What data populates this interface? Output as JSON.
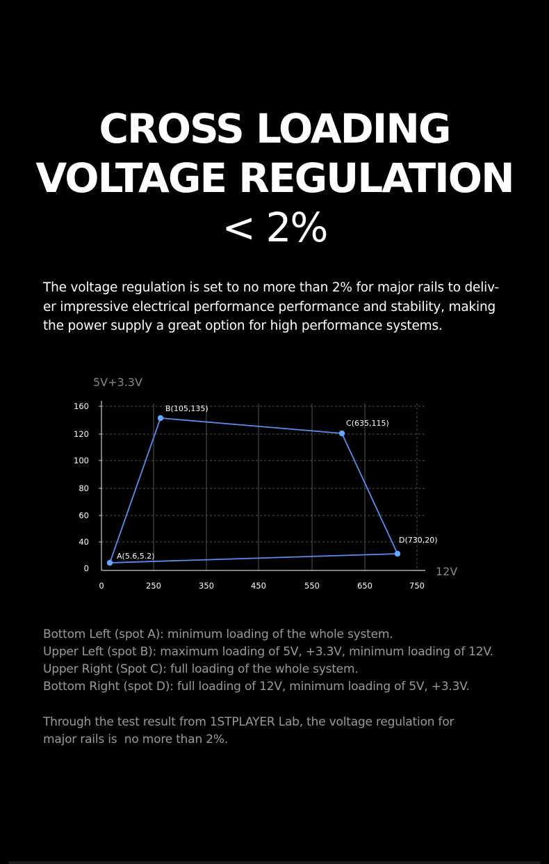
{
  "heading": {
    "line1": "CROSS LOADING",
    "line2": "VOLTAGE REGULATION",
    "line3": "< 2%"
  },
  "intro": {
    "line1": "The voltage regulation is set to no more than 2% for major rails to deliv-",
    "line2": "er impressive electrical performance performance and stability, making",
    "line3": "the power supply a great option for high performance systems."
  },
  "chart_data": {
    "type": "line",
    "ylabel": "5V+3.3V",
    "xlabel": "12V",
    "x_ticks": [
      "0",
      "250",
      "350",
      "450",
      "550",
      "650",
      "750"
    ],
    "y_ticks": [
      "160",
      "120",
      "100",
      "80",
      "60",
      "40",
      "0"
    ],
    "grid": true,
    "points": [
      {
        "label": "A(5.6,5.2)",
        "x": 5.6,
        "y": 5.2
      },
      {
        "label": "B(105,135)",
        "x": 105,
        "y": 135
      },
      {
        "label": "C(635,115)",
        "x": 635,
        "y": 115
      },
      {
        "label": "D(730,20)",
        "x": 730,
        "y": 20
      }
    ],
    "closed": true,
    "colors": {
      "line": "#5b8cf0",
      "point": "#6aa6ff",
      "grid": "#555555",
      "axis": "#cfcfcf",
      "tick_text": "#ffffff",
      "axis_label": "#888888"
    }
  },
  "notes": {
    "line1": "Bottom Left (spot A): minimum loading of the whole system.",
    "line2": "Upper Left (spot B): maximum loading of 5V, +3.3V, minimum loading of 12V.",
    "line3": "Upper Right (Spot C): full loading of the whole system.",
    "line4": "Bottom Right (spot D): full loading of 12V, minimum loading of 5V, +3.3V."
  },
  "conclusion": {
    "line1": "Through the test result from 1STPLAYER Lab, the voltage regulation for",
    "line2": "major rails is  no more than 2%."
  }
}
